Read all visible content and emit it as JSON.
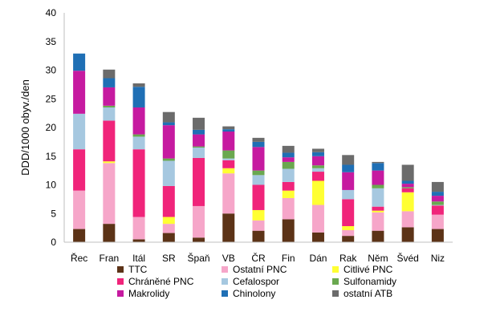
{
  "chart_data": {
    "type": "bar",
    "stacked": true,
    "title": "",
    "xlabel": "",
    "ylabel": "DDD/1000 obyv./den",
    "ylim": [
      0,
      40
    ],
    "yticks": [
      0,
      5,
      10,
      15,
      20,
      25,
      30,
      35,
      40
    ],
    "grid": false,
    "legend_position": "bottom",
    "categories": [
      "Řec",
      "Fran",
      "Itál",
      "SR",
      "Špaň",
      "VB",
      "ČR",
      "Fin",
      "Dán",
      "Rak",
      "Něm",
      "Švéd",
      "Niz"
    ],
    "series": [
      {
        "name": "TTC",
        "color": "#5c3317",
        "values": [
          2.3,
          3.2,
          0.5,
          1.6,
          0.8,
          5.0,
          2.0,
          4.0,
          1.7,
          1.1,
          2.0,
          2.6,
          2.3
        ]
      },
      {
        "name": "Ostatní PNC",
        "color": "#f6a6c9",
        "values": [
          6.7,
          10.6,
          3.9,
          1.6,
          5.5,
          7.0,
          1.8,
          3.7,
          4.8,
          1.0,
          3.2,
          2.8,
          2.5
        ]
      },
      {
        "name": "Citlivé PNC",
        "color": "#ffff33",
        "values": [
          0.0,
          0.3,
          0.0,
          1.2,
          0.0,
          0.9,
          1.8,
          1.3,
          4.2,
          0.7,
          0.3,
          3.3,
          0.0
        ]
      },
      {
        "name": "Chráněné PNC",
        "color": "#f0247a",
        "values": [
          7.2,
          7.1,
          11.8,
          5.4,
          8.4,
          1.4,
          4.4,
          1.5,
          1.6,
          4.7,
          0.7,
          0.7,
          1.6
        ]
      },
      {
        "name": "Cefalospor",
        "color": "#a6c8e0",
        "values": [
          6.2,
          2.3,
          2.2,
          4.4,
          1.8,
          0.3,
          1.7,
          2.3,
          0.6,
          1.6,
          3.2,
          0.0,
          0.1
        ]
      },
      {
        "name": "Sulfonamidy",
        "color": "#6aa84f",
        "values": [
          0.0,
          0.3,
          0.4,
          0.4,
          0.2,
          1.4,
          0.8,
          1.2,
          0.5,
          0.0,
          0.6,
          0.2,
          0.6
        ]
      },
      {
        "name": "Makrolidy",
        "color": "#c61aa0",
        "values": [
          7.5,
          3.2,
          4.7,
          5.8,
          2.1,
          3.3,
          4.1,
          0.8,
          1.6,
          3.1,
          2.5,
          0.6,
          1.0
        ]
      },
      {
        "name": "Chinolony",
        "color": "#1f6fb5",
        "values": [
          3.0,
          1.6,
          3.6,
          0.5,
          0.8,
          0.4,
          0.9,
          0.8,
          0.7,
          1.3,
          1.3,
          0.5,
          0.7
        ]
      },
      {
        "name": "ostatní ATB",
        "color": "#6b6b6b",
        "values": [
          0.0,
          1.5,
          0.6,
          1.8,
          2.1,
          0.5,
          0.7,
          1.2,
          0.6,
          1.7,
          0.2,
          2.8,
          1.7
        ]
      }
    ]
  }
}
